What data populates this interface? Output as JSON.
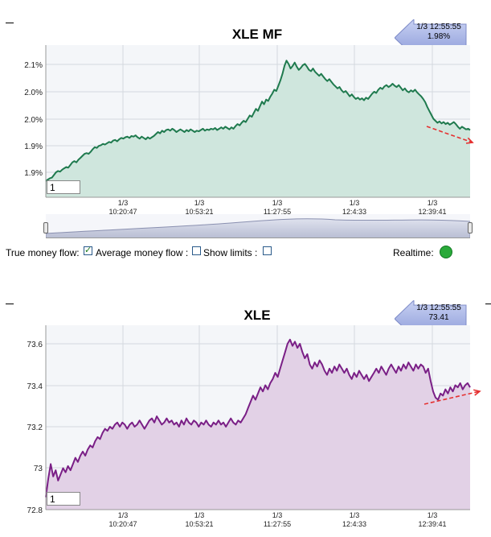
{
  "chart_data": [
    {
      "type": "area",
      "title": "XLE MF",
      "y_tick_labels": [
        "2.1%",
        "2.0%",
        "2.0%",
        "1.9%",
        "1.9%"
      ],
      "x_tick_labels": [
        [
          "1/3",
          "10:20:47"
        ],
        [
          "1/3",
          "10:53:21"
        ],
        [
          "1/3",
          "11:27:55"
        ],
        [
          "1/3",
          "12:4:33"
        ],
        [
          "1/3",
          "12:39:41"
        ]
      ],
      "grid": true,
      "line_color": "#1f7a4e",
      "fill_color": "#cfe6dd",
      "callout": {
        "time": "1/3 12:55:55",
        "value": "1.98%"
      },
      "trend_arrow": "down",
      "series": [
        {
          "values": [
            1.884,
            1.886,
            1.888,
            1.889,
            1.893,
            1.897,
            1.899,
            1.898,
            1.901,
            1.903,
            1.905,
            1.904,
            1.908,
            1.912,
            1.914,
            1.912,
            1.916,
            1.919,
            1.922,
            1.925,
            1.926,
            1.925,
            1.928,
            1.932,
            1.935,
            1.934,
            1.937,
            1.938,
            1.94,
            1.939,
            1.941,
            1.943,
            1.942,
            1.945,
            1.946,
            1.944,
            1.947,
            1.949,
            1.948,
            1.95,
            1.951,
            1.949,
            1.952,
            1.951,
            1.953,
            1.95,
            1.948,
            1.951,
            1.949,
            1.947,
            1.95,
            1.948,
            1.95,
            1.952,
            1.955,
            1.958,
            1.956,
            1.96,
            1.958,
            1.961,
            1.962,
            1.96,
            1.963,
            1.961,
            1.958,
            1.96,
            1.962,
            1.96,
            1.958,
            1.961,
            1.959,
            1.962,
            1.96,
            1.958,
            1.96,
            1.959,
            1.961,
            1.963,
            1.96,
            1.962,
            1.961,
            1.963,
            1.962,
            1.964,
            1.961,
            1.963,
            1.965,
            1.963,
            1.966,
            1.964,
            1.962,
            1.965,
            1.963,
            1.967,
            1.97,
            1.968,
            1.972,
            1.975,
            1.973,
            1.978,
            1.983,
            1.981,
            1.987,
            1.993,
            1.99,
            1.997,
            2.004,
            2.0,
            2.007,
            2.005,
            2.011,
            2.016,
            2.022,
            2.02,
            2.028,
            2.036,
            2.046,
            2.058,
            2.066,
            2.061,
            2.054,
            2.058,
            2.063,
            2.057,
            2.052,
            2.055,
            2.059,
            2.061,
            2.057,
            2.052,
            2.05,
            2.054,
            2.049,
            2.046,
            2.043,
            2.046,
            2.042,
            2.038,
            2.035,
            2.038,
            2.034,
            2.03,
            2.027,
            2.024,
            2.026,
            2.021,
            2.018,
            2.02,
            2.016,
            2.012,
            2.015,
            2.011,
            2.008,
            2.01,
            2.007,
            2.009,
            2.006,
            2.01,
            2.008,
            2.012,
            2.016,
            2.019,
            2.017,
            2.022,
            2.025,
            2.023,
            2.027,
            2.029,
            2.026,
            2.028,
            2.031,
            2.028,
            2.026,
            2.029,
            2.025,
            2.021,
            2.024,
            2.02,
            2.018,
            2.021,
            2.019,
            2.022,
            2.018,
            2.015,
            2.012,
            2.008,
            2.003,
            1.996,
            1.99,
            1.984,
            1.978,
            1.975,
            1.972,
            1.974,
            1.971,
            1.973,
            1.97,
            1.972,
            1.969,
            1.971,
            1.973,
            1.97,
            1.966,
            1.963,
            1.966,
            1.964,
            1.962,
            1.963,
            1.961
          ]
        }
      ]
    },
    {
      "type": "area",
      "title": "XLE",
      "y_tick_labels": [
        "73.6",
        "73.4",
        "73.2",
        "73",
        "72.8"
      ],
      "ylim": [
        72.8,
        73.6
      ],
      "x_tick_labels": [
        [
          "1/3",
          "10:20:47"
        ],
        [
          "1/3",
          "10:53:21"
        ],
        [
          "1/3",
          "11:27:55"
        ],
        [
          "1/3",
          "12:4:33"
        ],
        [
          "1/3",
          "12:39:41"
        ]
      ],
      "grid": true,
      "line_color": "#7a1f86",
      "fill_color": "#e2d1e6",
      "callout": {
        "time": "1/3 12:55:55",
        "value": "73.41"
      },
      "trend_arrow": "up",
      "series": [
        {
          "values": [
            72.86,
            72.95,
            73.02,
            72.96,
            72.99,
            72.94,
            72.97,
            73.0,
            72.98,
            73.01,
            72.99,
            73.02,
            73.05,
            73.03,
            73.06,
            73.08,
            73.06,
            73.09,
            73.11,
            73.1,
            73.13,
            73.15,
            73.14,
            73.17,
            73.19,
            73.18,
            73.2,
            73.19,
            73.21,
            73.22,
            73.2,
            73.22,
            73.21,
            73.19,
            73.21,
            73.22,
            73.2,
            73.21,
            73.23,
            73.21,
            73.19,
            73.21,
            73.23,
            73.24,
            73.22,
            73.25,
            73.23,
            73.21,
            73.22,
            73.24,
            73.22,
            73.23,
            73.21,
            73.22,
            73.2,
            73.23,
            73.21,
            73.24,
            73.22,
            73.21,
            73.23,
            73.22,
            73.2,
            73.22,
            73.21,
            73.23,
            73.21,
            73.2,
            73.22,
            73.21,
            73.23,
            73.21,
            73.22,
            73.2,
            73.22,
            73.24,
            73.22,
            73.21,
            73.23,
            73.22,
            73.24,
            73.26,
            73.29,
            73.32,
            73.35,
            73.33,
            73.36,
            73.39,
            73.37,
            73.4,
            73.38,
            73.41,
            73.43,
            73.46,
            73.44,
            73.48,
            73.52,
            73.56,
            73.6,
            73.62,
            73.59,
            73.61,
            73.58,
            73.6,
            73.56,
            73.53,
            73.55,
            73.5,
            73.48,
            73.51,
            73.49,
            73.52,
            73.5,
            73.47,
            73.45,
            73.48,
            73.46,
            73.49,
            73.47,
            73.5,
            73.48,
            73.46,
            73.48,
            73.45,
            73.43,
            73.46,
            73.44,
            73.47,
            73.45,
            73.43,
            73.45,
            73.42,
            73.44,
            73.46,
            73.48,
            73.46,
            73.49,
            73.47,
            73.45,
            73.48,
            73.5,
            73.48,
            73.46,
            73.49,
            73.47,
            73.5,
            73.48,
            73.51,
            73.49,
            73.47,
            73.5,
            73.48,
            73.5,
            73.49,
            73.46,
            73.48,
            73.42,
            73.37,
            73.34,
            73.33,
            73.36,
            73.35,
            73.38,
            73.36,
            73.39,
            73.37,
            73.4,
            73.39,
            73.41,
            73.38,
            73.4,
            73.41,
            73.39
          ]
        }
      ]
    }
  ],
  "controls": {
    "true_money_flow_label": "True money flow:",
    "true_money_flow_checked": true,
    "average_money_flow_label": "Average money flow :",
    "average_money_flow_checked": false,
    "show_limits_label": "Show limits :",
    "show_limits_checked": false,
    "realtime_label": "Realtime:"
  },
  "zoom_box": {
    "value": "1"
  }
}
